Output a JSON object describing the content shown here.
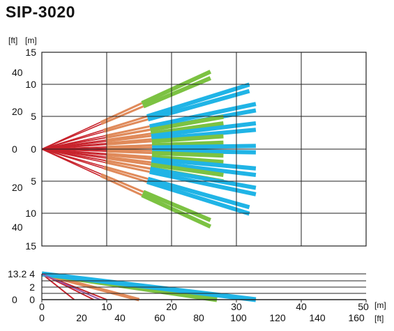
{
  "title": "SIP-3020",
  "units": {
    "ft": "[ft]",
    "m": "[m]"
  },
  "colors": {
    "red": "#c8232c",
    "purple": "#9b59a6",
    "orange": "#e08a5a",
    "green": "#7cc242",
    "cyan": "#20b4e6",
    "grid": "#222222"
  },
  "top_view": {
    "m_ticks": [
      "15",
      "10",
      "5",
      "0",
      "5",
      "10",
      "15"
    ],
    "ft_ticks": [
      "40",
      "20",
      "0",
      "20",
      "40"
    ],
    "x_range_m": [
      0,
      50
    ],
    "y_range_m": [
      -15,
      15
    ]
  },
  "side_view": {
    "m_ticks": [
      "4",
      "2",
      "0"
    ],
    "ft_ticks": [
      "13.2",
      "0"
    ],
    "x_ticks_m": [
      "0",
      "10",
      "20",
      "30",
      "40",
      "50"
    ],
    "x_ticks_ft": [
      "0",
      "20",
      "40",
      "60",
      "80",
      "100",
      "120",
      "140",
      "160"
    ],
    "x_unit_m": "[m]",
    "x_unit_ft": "[ft]",
    "mount_height_m": 4
  },
  "chart_data": {
    "type": "diagram",
    "description_free": true,
    "beams_top_view": [
      {
        "end_m": [
          26,
          12
        ],
        "color": "green"
      },
      {
        "end_m": [
          26,
          11
        ],
        "color": "green"
      },
      {
        "end_m": [
          32,
          10
        ],
        "color": "cyan"
      },
      {
        "end_m": [
          32,
          9
        ],
        "color": "cyan"
      },
      {
        "end_m": [
          33,
          7
        ],
        "color": "cyan"
      },
      {
        "end_m": [
          33,
          6
        ],
        "color": "cyan"
      },
      {
        "end_m": [
          28,
          5
        ],
        "color": "green"
      },
      {
        "end_m": [
          28,
          4
        ],
        "color": "green"
      },
      {
        "end_m": [
          33,
          4
        ],
        "color": "cyan"
      },
      {
        "end_m": [
          33,
          3
        ],
        "color": "cyan"
      },
      {
        "end_m": [
          28,
          2
        ],
        "color": "green"
      },
      {
        "end_m": [
          28,
          1
        ],
        "color": "green"
      },
      {
        "end_m": [
          33,
          0.5
        ],
        "color": "cyan"
      },
      {
        "end_m": [
          33,
          -0.5
        ],
        "color": "cyan"
      },
      {
        "end_m": [
          28,
          -1
        ],
        "color": "green"
      },
      {
        "end_m": [
          28,
          -2
        ],
        "color": "green"
      },
      {
        "end_m": [
          33,
          -3
        ],
        "color": "cyan"
      },
      {
        "end_m": [
          33,
          -4
        ],
        "color": "cyan"
      },
      {
        "end_m": [
          28,
          -4
        ],
        "color": "green"
      },
      {
        "end_m": [
          28,
          -5
        ],
        "color": "green"
      },
      {
        "end_m": [
          33,
          -6
        ],
        "color": "cyan"
      },
      {
        "end_m": [
          33,
          -7
        ],
        "color": "cyan"
      },
      {
        "end_m": [
          32,
          -9
        ],
        "color": "cyan"
      },
      {
        "end_m": [
          32,
          -10
        ],
        "color": "cyan"
      },
      {
        "end_m": [
          26,
          -11
        ],
        "color": "green"
      },
      {
        "end_m": [
          26,
          -12
        ],
        "color": "green"
      }
    ],
    "beams_side_view": [
      {
        "end_m": [
          5,
          0
        ],
        "color": "red"
      },
      {
        "end_m": [
          8,
          0
        ],
        "color": "red"
      },
      {
        "end_m": [
          10,
          0
        ],
        "color": "red"
      },
      {
        "end_m": [
          15,
          0
        ],
        "color": "orange"
      },
      {
        "end_m": [
          27,
          0
        ],
        "color": "green"
      },
      {
        "end_m": [
          33,
          0
        ],
        "color": "cyan"
      }
    ]
  }
}
